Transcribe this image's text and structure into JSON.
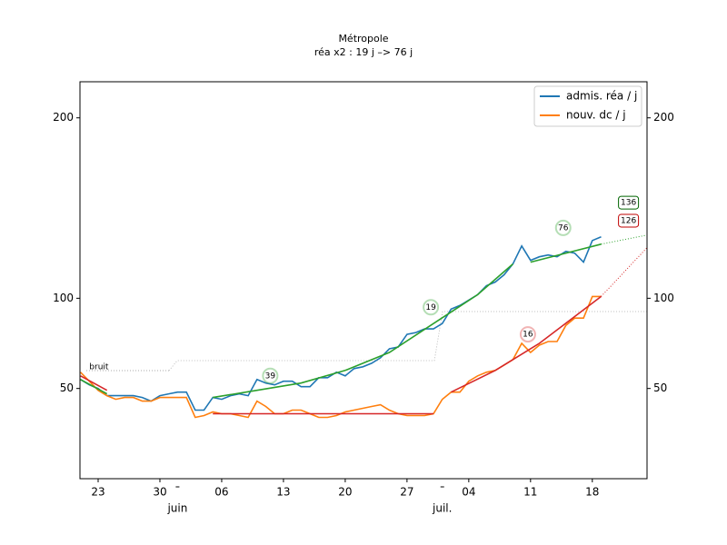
{
  "chart_data": {
    "type": "line",
    "title": "Métropole",
    "subtitle": "réa x2 : 19 j –> 76 j",
    "x": [
      -2,
      -1,
      0,
      1,
      2,
      3,
      4,
      5,
      6,
      7,
      8,
      9,
      10,
      11,
      12,
      13,
      14,
      15,
      16,
      17,
      18,
      19,
      20,
      21,
      22,
      23,
      24,
      25,
      26,
      27,
      28,
      29,
      30,
      31,
      32,
      33,
      34,
      35,
      36,
      37,
      38,
      39,
      40,
      41,
      42,
      43,
      44,
      45,
      46,
      47,
      48,
      49,
      50,
      51,
      52,
      53,
      54,
      55,
      56,
      57
    ],
    "series": [
      {
        "name": "admis. réa / j",
        "color": "#1f77b4",
        "values": [
          55,
          52,
          50,
          46,
          46,
          46,
          46,
          45,
          43,
          46,
          47,
          48,
          48,
          38,
          38,
          45,
          44,
          46,
          47,
          46,
          55,
          53,
          52,
          54,
          54,
          51,
          51,
          56,
          56,
          59,
          57,
          61,
          62,
          64,
          67,
          72,
          73,
          80,
          81,
          83,
          83,
          86,
          94,
          96,
          99,
          102,
          107,
          109,
          113,
          119,
          129,
          121,
          123,
          124,
          123,
          126,
          125,
          120,
          132,
          134
        ]
      },
      {
        "name": "nouv. dc / j",
        "color": "#ff7f0e",
        "values": [
          59,
          54,
          49,
          46,
          44,
          45,
          45,
          43,
          43,
          45,
          45,
          45,
          45,
          34,
          35,
          37,
          36,
          36,
          35,
          34,
          43,
          40,
          36,
          36,
          38,
          38,
          36,
          34,
          34,
          35,
          37,
          38,
          39,
          40,
          41,
          38,
          36,
          35,
          35,
          35,
          36,
          44,
          48,
          48,
          54,
          57,
          59,
          60,
          63,
          66,
          75,
          70,
          74,
          76,
          76,
          85,
          89,
          89,
          101,
          101
        ]
      }
    ],
    "fits": [
      {
        "color": "#2ca02c",
        "style": "solid",
        "x": [
          -2,
          1
        ],
        "values": [
          55,
          47
        ]
      },
      {
        "color": "#2ca02c",
        "style": "solid",
        "x": [
          13,
          18,
          23,
          28,
          33,
          38,
          43,
          47
        ],
        "values": [
          45,
          49,
          53,
          60,
          70,
          86,
          102,
          119
        ]
      },
      {
        "color": "#2ca02c",
        "style": "solid",
        "x": [
          49,
          57
        ],
        "values": [
          120,
          130
        ]
      },
      {
        "color": "#2ca02c",
        "style": "dotted",
        "x": [
          57,
          62.2
        ],
        "values": [
          130,
          135
        ]
      },
      {
        "color": "#d62728",
        "style": "solid",
        "x": [
          -2,
          1
        ],
        "values": [
          57,
          49
        ]
      },
      {
        "color": "#d62728",
        "style": "solid",
        "x": [
          13,
          38
        ],
        "values": [
          36,
          36
        ]
      },
      {
        "color": "#d62728",
        "style": "solid",
        "x": [
          40,
          45,
          50,
          57
        ],
        "values": [
          48,
          60,
          75,
          101
        ]
      },
      {
        "color": "#d62728",
        "style": "dotted",
        "x": [
          57,
          62.2
        ],
        "values": [
          101,
          128
        ]
      }
    ],
    "annotations": [
      {
        "text": "39",
        "color": "#2ca02c",
        "x": 19.5,
        "y": 57
      },
      {
        "text": "19",
        "color": "#2ca02c",
        "x": 37.7,
        "y": 95
      },
      {
        "text": "76",
        "color": "#2ca02c",
        "x": 52.7,
        "y": 139
      },
      {
        "text": "16",
        "color": "#d62728",
        "x": 48.7,
        "y": 80
      },
      {
        "text": "136",
        "color": "#006400",
        "x": 60.1,
        "y": 153,
        "boxed": true
      },
      {
        "text": "126",
        "color": "#c00000",
        "x": 60.1,
        "y": 143,
        "boxed": true
      },
      {
        "text": "bruit",
        "color": "#aaaaaa",
        "x": -1,
        "y": 62
      }
    ],
    "xlim": [
      -2.06,
      62.2
    ],
    "xticks": [
      {
        "value": 0,
        "label": "23"
      },
      {
        "value": 7,
        "label": "30"
      },
      {
        "value": 14,
        "label": "06"
      },
      {
        "value": 21,
        "label": "13"
      },
      {
        "value": 28,
        "label": "20"
      },
      {
        "value": 35,
        "label": "27"
      },
      {
        "value": 42,
        "label": "04"
      },
      {
        "value": 49,
        "label": "11"
      },
      {
        "value": 56,
        "label": "18"
      }
    ],
    "month_ticks": [
      {
        "value": 9,
        "label": "juin"
      },
      {
        "value": 39,
        "label": "juil."
      }
    ],
    "ylim": [
      0,
      220
    ],
    "yticks": [
      50,
      100,
      200
    ],
    "legend": "upper right"
  }
}
